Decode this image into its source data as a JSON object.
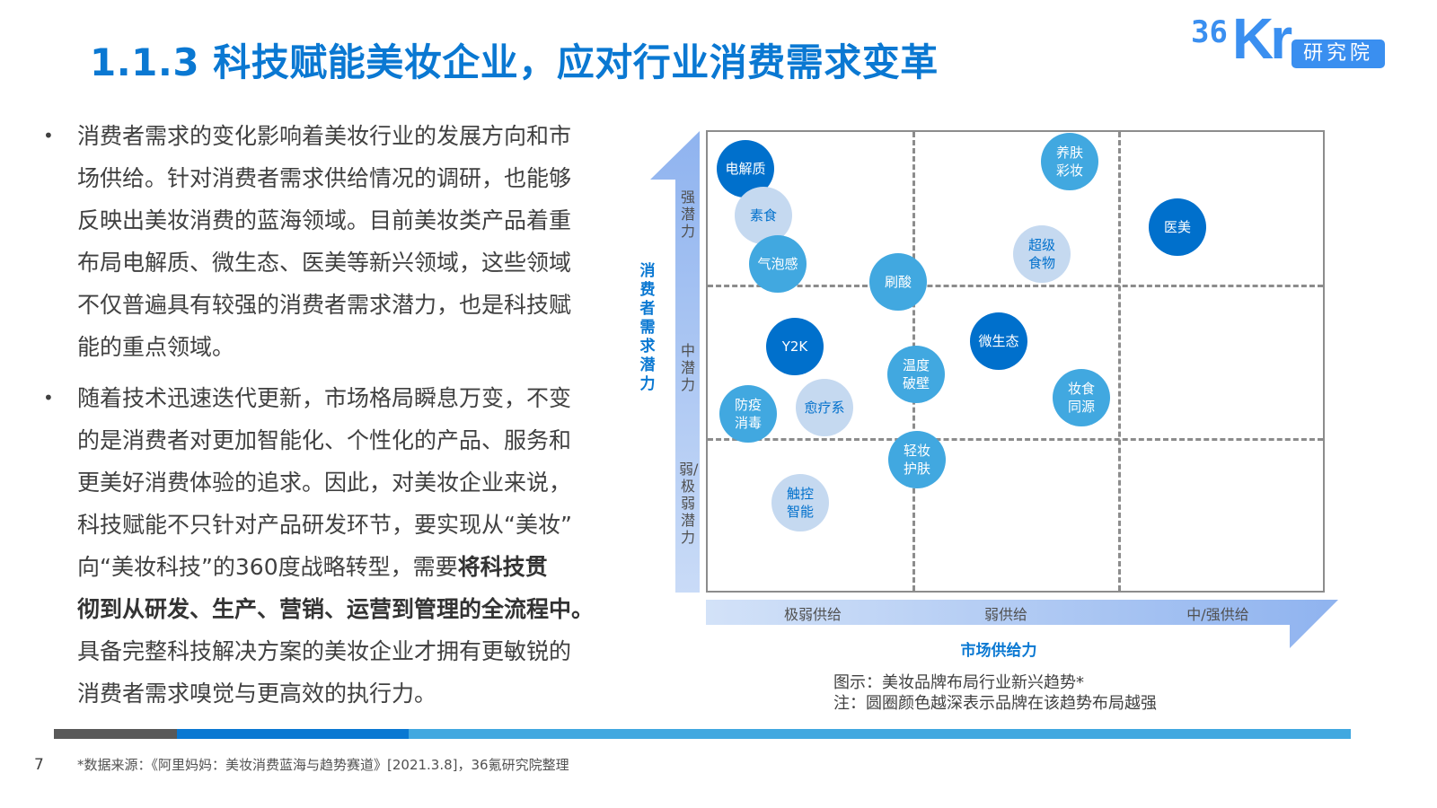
{
  "title": "1.1.3 科技赋能美妆企业，应对行业消费需求变革",
  "logo": {
    "text": "36Kr",
    "tag": "研究院"
  },
  "body": {
    "bullet_icon": "•",
    "paragraphs": [
      {
        "lines": [
          "消费者需求的变化影响着美妆行业的发展方向和市",
          "场供给。针对消费者需求供给情况的调研，也能够",
          "反映出美妆消费的蓝海领域。目前美妆类产品着重",
          "布局电解质、微生态、医美等新兴领域，这些领域",
          "不仅普遍具有较强的消费者需求潜力，也是科技赋",
          "能的重点领域。"
        ]
      },
      {
        "lines": [
          "随着技术迅速迭代更新，市场格局瞬息万变，不变",
          "的是消费者对更加智能化、个性化的产品、服务和",
          "更美好消费体验的追求。因此，对美妆企业来说，",
          "科技赋能不只针对产品研发环节，要实现从“美妆”"
        ],
        "line_mixed": {
          "normal": "向“美妆科技”的360度战略转型，需要",
          "bold": "将科技贯"
        },
        "bold_line": "彻到从研发、生产、营销、运营到管理的全流程中。",
        "tail_lines": [
          "具备完整科技解决方案的美妆企业才拥有更敏锐的",
          "消费者需求嗅觉与更高效的执行力。"
        ]
      }
    ]
  },
  "chart_data": {
    "type": "bubble-matrix",
    "xlabel": "市场供给力",
    "ylabel": "消费者需求潜力",
    "x_categories": [
      "极弱供给",
      "弱供给",
      "中/强供给"
    ],
    "y_categories": [
      "强潜力",
      "中潜力",
      "弱/极弱潜力"
    ],
    "colors": {
      "strong": "#0070cc",
      "medium": "#41a8e0",
      "weak": "#c5d9f0"
    },
    "items": [
      {
        "label": "电解质",
        "supply": "极弱供给",
        "demand": "强潜力",
        "shade": "strong"
      },
      {
        "label": "素食",
        "supply": "极弱供给",
        "demand": "强潜力",
        "shade": "weak"
      },
      {
        "label": "气泡感",
        "supply": "极弱供给",
        "demand": "强潜力",
        "shade": "medium"
      },
      {
        "label": "刷酸",
        "supply": "极弱供给",
        "demand": "强潜力",
        "shade": "medium"
      },
      {
        "label": "养肤\n彩妆",
        "supply": "弱供给",
        "demand": "强潜力",
        "shade": "medium"
      },
      {
        "label": "超级\n食物",
        "supply": "弱供给",
        "demand": "强潜力",
        "shade": "weak"
      },
      {
        "label": "医美",
        "supply": "中/强供给",
        "demand": "强潜力",
        "shade": "strong"
      },
      {
        "label": "Y2K",
        "supply": "极弱供给",
        "demand": "中潜力",
        "shade": "strong"
      },
      {
        "label": "温度\n破壁",
        "supply": "弱供给",
        "demand": "中潜力",
        "shade": "medium"
      },
      {
        "label": "微生态",
        "supply": "弱供给",
        "demand": "中潜力",
        "shade": "strong"
      },
      {
        "label": "妆食\n同源",
        "supply": "弱供给",
        "demand": "中潜力",
        "shade": "medium"
      },
      {
        "label": "防疫\n消毒",
        "supply": "极弱供给",
        "demand": "中潜力",
        "shade": "medium"
      },
      {
        "label": "愈疗系",
        "supply": "极弱供给",
        "demand": "中潜力",
        "shade": "weak"
      },
      {
        "label": "轻妆\n护肤",
        "supply": "弱供给",
        "demand": "弱/极弱潜力",
        "shade": "medium"
      },
      {
        "label": "触控\n智能",
        "supply": "极弱供给",
        "demand": "弱/极弱潜力",
        "shade": "weak"
      }
    ]
  },
  "captions": [
    "图示：美妆品牌布局行业新兴趋势*",
    "注：圆圈颜色越深表示品牌在该趋势布局越强"
  ],
  "footer": {
    "page": "7",
    "source": "*数据来源：《阿里妈妈：美妆消费蓝海与趋势赛道》[2021.3.8]，36氪研究院整理"
  }
}
